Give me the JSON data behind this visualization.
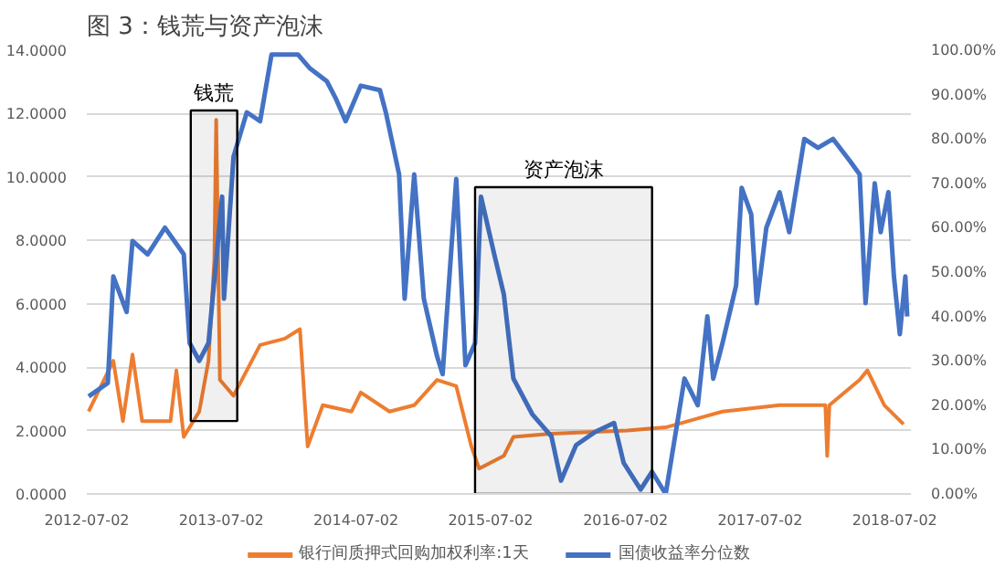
{
  "chart_data": {
    "type": "line",
    "title": "图 3：钱荒与资产泡沫",
    "xlim": [
      "2012-07-02",
      "2018-08-15"
    ],
    "xticks": [
      "2012-07-02",
      "2013-07-02",
      "2014-07-02",
      "2015-07-02",
      "2016-07-02",
      "2017-07-02",
      "2018-07-02"
    ],
    "ylim": [
      0,
      14
    ],
    "yticks": [
      {
        "value": 0,
        "label": "0.0000"
      },
      {
        "value": 2,
        "label": "2.0000"
      },
      {
        "value": 4,
        "label": "4.0000"
      },
      {
        "value": 6,
        "label": "6.0000"
      },
      {
        "value": 8,
        "label": "8.0000"
      },
      {
        "value": 10,
        "label": "10.0000"
      },
      {
        "value": 12,
        "label": "12.0000"
      },
      {
        "value": 14,
        "label": "14.0000"
      }
    ],
    "y2lim": [
      0,
      100
    ],
    "y2ticks": [
      {
        "value": 0,
        "label": "0.00%"
      },
      {
        "value": 10,
        "label": "10.00%"
      },
      {
        "value": 20,
        "label": "20.00%"
      },
      {
        "value": 30,
        "label": "30.00%"
      },
      {
        "value": 40,
        "label": "40.00%"
      },
      {
        "value": 50,
        "label": "50.00%"
      },
      {
        "value": 60,
        "label": "60.00%"
      },
      {
        "value": 70,
        "label": "70.00%"
      },
      {
        "value": 80,
        "label": "80.00%"
      },
      {
        "value": 90,
        "label": "90.00%"
      },
      {
        "value": 100,
        "label": "100.00%"
      }
    ],
    "grid": "y",
    "legend": "bottom",
    "line_style": "solid",
    "series": [
      {
        "name": "银行间质押式回购加权利率:1天",
        "color": "#ed7d31",
        "x": [
          "2012-07-07",
          "2012-09-12",
          "2012-10-08",
          "2012-11-03",
          "2012-11-29",
          "2013-02-14",
          "2013-03-02",
          "2013-03-22",
          "2013-05-03",
          "2013-05-28",
          "2013-06-13",
          "2013-06-18",
          "2013-06-28",
          "2013-08-04",
          "2013-10-15",
          "2013-12-21",
          "2014-01-31",
          "2014-02-21",
          "2014-04-03",
          "2014-06-20",
          "2014-07-15",
          "2014-10-01",
          "2014-12-07",
          "2015-02-07",
          "2015-03-31",
          "2015-05-11",
          "2015-06-01",
          "2015-08-07",
          "2015-09-02",
          "2015-12-14",
          "2016-07-07",
          "2016-10-19",
          "2017-03-22",
          "2017-08-24",
          "2017-12-26",
          "2017-12-31",
          "2018-01-06",
          "2018-03-29",
          "2018-04-19",
          "2018-06-04",
          "2018-07-26"
        ],
        "values": [
          2.6,
          4.2,
          2.3,
          4.4,
          2.3,
          2.3,
          3.9,
          1.8,
          2.6,
          4.2,
          7.4,
          11.8,
          3.6,
          3.1,
          4.7,
          4.9,
          5.2,
          1.5,
          2.8,
          2.6,
          3.2,
          2.6,
          2.8,
          3.6,
          3.4,
          1.5,
          0.8,
          1.2,
          1.8,
          1.9,
          2.0,
          2.1,
          2.6,
          2.8,
          2.8,
          1.2,
          2.8,
          3.6,
          3.9,
          2.8,
          2.2
        ]
      },
      {
        "name": "国债收益率分位数",
        "color": "#4472c4",
        "axis": "y2",
        "x": [
          "2012-07-07",
          "2012-08-28",
          "2012-09-12",
          "2012-10-18",
          "2012-11-03",
          "2012-12-14",
          "2013-01-30",
          "2013-03-22",
          "2013-04-07",
          "2013-05-03",
          "2013-05-28",
          "2013-07-04",
          "2013-07-09",
          "2013-08-04",
          "2013-09-09",
          "2013-10-15",
          "2013-11-15",
          "2014-01-26",
          "2014-02-26",
          "2014-04-14",
          "2014-05-09",
          "2014-06-04",
          "2014-07-15",
          "2014-09-05",
          "2014-09-21",
          "2014-10-27",
          "2014-11-11",
          "2014-12-07",
          "2015-01-02",
          "2015-02-07",
          "2015-02-22",
          "2015-03-31",
          "2015-04-25",
          "2015-05-21",
          "2015-06-06",
          "2015-07-12",
          "2015-08-07",
          "2015-09-02",
          "2015-10-23",
          "2015-12-14",
          "2016-01-09",
          "2016-02-19",
          "2016-04-11",
          "2016-06-01",
          "2016-06-27",
          "2016-08-12",
          "2016-09-12",
          "2016-10-19",
          "2016-12-09",
          "2017-01-14",
          "2017-02-09",
          "2017-02-25",
          "2017-03-22",
          "2017-04-28",
          "2017-05-13",
          "2017-06-08",
          "2017-06-23",
          "2017-07-19",
          "2017-08-24",
          "2017-09-19",
          "2017-10-30",
          "2017-12-06",
          "2018-01-16",
          "2018-03-03",
          "2018-03-29",
          "2018-04-14",
          "2018-05-09",
          "2018-05-25",
          "2018-06-15",
          "2018-06-30",
          "2018-07-16",
          "2018-07-31",
          "2018-08-05"
        ],
        "values": [
          22,
          25,
          49,
          41,
          57,
          54,
          60,
          54,
          34,
          30,
          34,
          67,
          44,
          76,
          86,
          84,
          99,
          99,
          96,
          93,
          89,
          84,
          92,
          91,
          86,
          72,
          44,
          72,
          44,
          31,
          27,
          71,
          29,
          34,
          67,
          54,
          45,
          26,
          18,
          13,
          3,
          11,
          14,
          16,
          7,
          1,
          5,
          0,
          26,
          20,
          40,
          26,
          34,
          47,
          69,
          63,
          43,
          60,
          68,
          59,
          80,
          78,
          80,
          75,
          72,
          43,
          70,
          59,
          68,
          49,
          36,
          49,
          40
        ]
      }
    ],
    "bands": [
      {
        "axis": "x",
        "from": "2013-04-10",
        "to": "2013-08-14",
        "label": "钱荒",
        "color": "#000000"
      },
      {
        "axis": "x",
        "from": "2015-05-21",
        "to": "2016-09-12",
        "label": "资产泡沫",
        "color": "#000000"
      }
    ]
  }
}
